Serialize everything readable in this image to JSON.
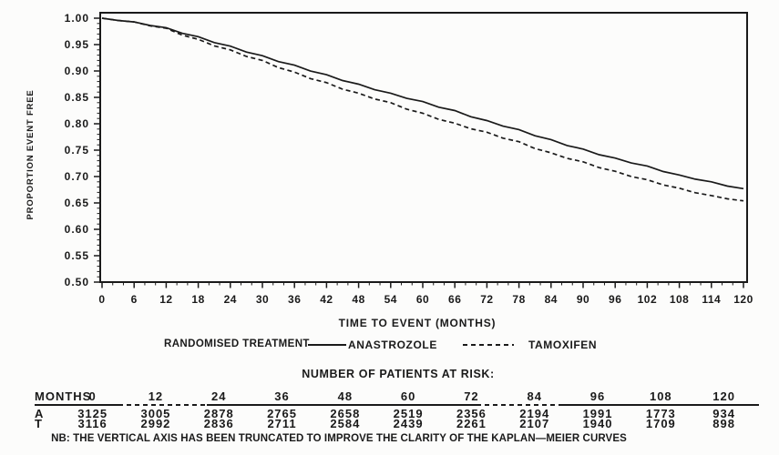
{
  "colors": {
    "ink": "#1a1a1a",
    "background": "#fcfcfb"
  },
  "chart_data": {
    "type": "line",
    "title": "",
    "xlabel": "TIME TO EVENT (MONTHS)",
    "ylabel": "PROPORTION EVENT FREE",
    "xlim": [
      0,
      120
    ],
    "ylim": [
      0.5,
      1.0
    ],
    "x_major_tick": 6,
    "x_minor_tick": 2,
    "y_major_tick": 0.05,
    "y_minor_tick": 0.01,
    "grid": "off",
    "legend_position": "below",
    "x_tick_labels": [
      "0",
      "6",
      "12",
      "18",
      "24",
      "30",
      "36",
      "42",
      "48",
      "54",
      "60",
      "66",
      "72",
      "78",
      "84",
      "90",
      "96",
      "102",
      "108",
      "114",
      "120"
    ],
    "y_tick_labels": [
      "1.00",
      "0.95",
      "0.90",
      "0.85",
      "0.80",
      "0.75",
      "0.70",
      "0.65",
      "0.60",
      "0.55",
      "0.50"
    ],
    "x": [
      0,
      6,
      12,
      18,
      24,
      30,
      36,
      42,
      48,
      54,
      60,
      66,
      72,
      78,
      84,
      90,
      96,
      102,
      108,
      114,
      120
    ],
    "series": [
      {
        "name": "ANASTROZOLE",
        "style": "solid",
        "values": [
          1.0,
          0.993,
          0.982,
          0.965,
          0.947,
          0.929,
          0.911,
          0.893,
          0.875,
          0.858,
          0.842,
          0.825,
          0.806,
          0.789,
          0.77,
          0.752,
          0.735,
          0.72,
          0.703,
          0.69,
          0.677
        ]
      },
      {
        "name": "TAMOXIFEN",
        "style": "dashed",
        "values": [
          1.0,
          0.993,
          0.981,
          0.96,
          0.94,
          0.92,
          0.898,
          0.878,
          0.858,
          0.84,
          0.82,
          0.801,
          0.784,
          0.766,
          0.745,
          0.728,
          0.71,
          0.694,
          0.678,
          0.664,
          0.654
        ]
      }
    ],
    "note": "NB: THE VERTICAL AXIS HAS BEEN TRUNCATED TO IMPROVE THE CLARITY OF THE KAPLAN—MEIER CURVES"
  },
  "legend": {
    "title": "RANDOMISED TREATMENT",
    "items": [
      {
        "label": "ANASTROZOLE",
        "style": "solid"
      },
      {
        "label": "TAMOXIFEN",
        "style": "dashed"
      }
    ]
  },
  "risk_table": {
    "heading": "NUMBER OF PATIENTS AT RISK:",
    "months_label": "MONTHS",
    "months": [
      "0",
      "12",
      "24",
      "36",
      "48",
      "60",
      "72",
      "84",
      "96",
      "108",
      "120"
    ],
    "rows": [
      {
        "label": "A",
        "values": [
          "3125",
          "3005",
          "2878",
          "2765",
          "2658",
          "2519",
          "2356",
          "2194",
          "1991",
          "1773",
          "934"
        ]
      },
      {
        "label": "T",
        "values": [
          "3116",
          "2992",
          "2836",
          "2711",
          "2584",
          "2439",
          "2261",
          "2107",
          "1940",
          "1709",
          "898"
        ]
      }
    ]
  }
}
